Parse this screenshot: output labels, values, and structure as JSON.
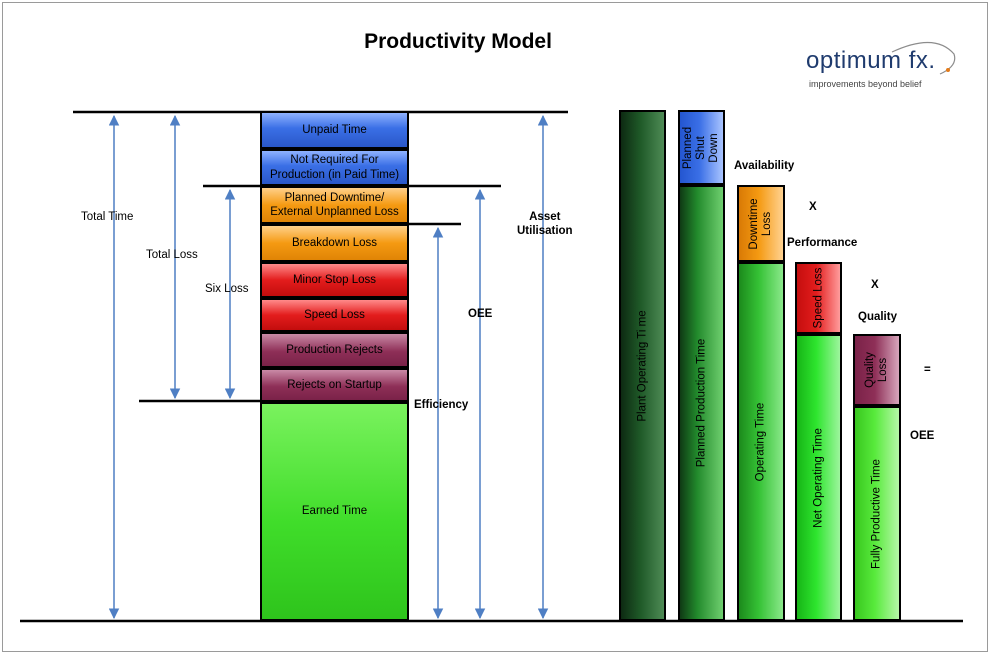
{
  "title": "Productivity Model",
  "logo": {
    "name": "optimum fx.",
    "tagline": "improvements beyond belief"
  },
  "stack": {
    "segments": [
      {
        "label": "Unpaid Time"
      },
      {
        "label": "Not Required For\nProduction (in Paid Time)"
      },
      {
        "label": "Planned Downtime/\nExternal Unplanned Loss"
      },
      {
        "label": "Breakdown Loss"
      },
      {
        "label": "Minor Stop Loss"
      },
      {
        "label": "Speed Loss"
      },
      {
        "label": "Production Rejects"
      },
      {
        "label": "Rejects on Startup"
      },
      {
        "label": "Earned Time"
      }
    ],
    "dimension_labels": {
      "total_time": "Total Time",
      "total_loss": "Total Loss",
      "six_loss": "Six Loss",
      "efficiency": "Efficiency",
      "oee": "OEE",
      "asset_utilisation": "Asset\nUtilisation"
    }
  },
  "waterfall": {
    "columns": [
      {
        "main": "Plant Operating Ti me",
        "loss": ""
      },
      {
        "main": "Planned Production Time",
        "loss": "Planned\nShut Down"
      },
      {
        "main": "Operating Time",
        "loss": "Downtime\nLoss"
      },
      {
        "main": "Net Operating Time",
        "loss": "Speed Loss"
      },
      {
        "main": "Fully Productive Time",
        "loss": "Quality\nLoss"
      }
    ],
    "factors": {
      "availability": "Availability",
      "performance": "Performance",
      "quality": "Quality",
      "times1": "X",
      "times2": "X",
      "equals": "=",
      "result": "OEE"
    }
  },
  "colors": {
    "blue": "#3a6fe6",
    "orange": "#f59a12",
    "red": "#e31d1d",
    "maroon": "#8e2f57",
    "green": "#40dd2a",
    "dark_green": "#173d1c",
    "arrow": "#4f7fc4"
  }
}
